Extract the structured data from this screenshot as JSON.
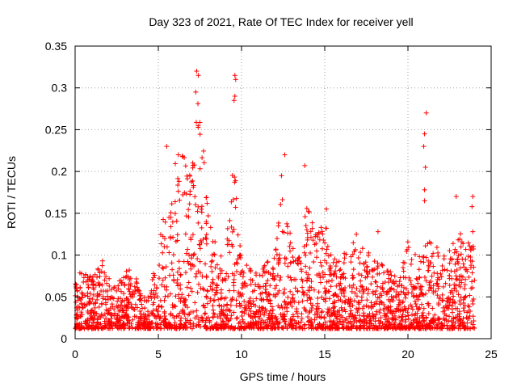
{
  "chart_data": {
    "type": "scatter",
    "title": "Day 323 of 2021, Rate Of TEC Index for receiver yell",
    "xlabel": "GPS time / hours",
    "ylabel": "ROTI / TECUs",
    "xlim": [
      0,
      25
    ],
    "ylim": [
      0,
      0.35
    ],
    "xticks": [
      0,
      5,
      10,
      15,
      20,
      25
    ],
    "xtick_labels": [
      "0",
      "5",
      "10",
      "15",
      "20",
      "25"
    ],
    "yticks": [
      0,
      0.05,
      0.1,
      0.15,
      0.2,
      0.25,
      0.3,
      0.35
    ],
    "ytick_labels": [
      "0",
      "0.05",
      "0.1",
      "0.15",
      "0.2",
      "0.25",
      "0.3",
      "0.35"
    ],
    "grid": true,
    "marker": "+",
    "marker_color": "#ff0000",
    "series": [
      {
        "name": "ROTI",
        "x_range": [
          0,
          24
        ],
        "envelope": [
          {
            "x": 0.0,
            "y": 0.07
          },
          {
            "x": 0.3,
            "y": 0.085
          },
          {
            "x": 1.0,
            "y": 0.075
          },
          {
            "x": 1.7,
            "y": 0.095
          },
          {
            "x": 2.0,
            "y": 0.075
          },
          {
            "x": 2.5,
            "y": 0.06
          },
          {
            "x": 2.9,
            "y": 0.09
          },
          {
            "x": 3.5,
            "y": 0.085
          },
          {
            "x": 4.0,
            "y": 0.05
          },
          {
            "x": 4.5,
            "y": 0.05
          },
          {
            "x": 5.0,
            "y": 0.12
          },
          {
            "x": 5.5,
            "y": 0.17
          },
          {
            "x": 6.0,
            "y": 0.21
          },
          {
            "x": 6.5,
            "y": 0.23
          },
          {
            "x": 7.0,
            "y": 0.2
          },
          {
            "x": 7.3,
            "y": 0.3
          },
          {
            "x": 7.6,
            "y": 0.27
          },
          {
            "x": 8.0,
            "y": 0.16
          },
          {
            "x": 8.5,
            "y": 0.11
          },
          {
            "x": 9.0,
            "y": 0.09
          },
          {
            "x": 9.4,
            "y": 0.2
          },
          {
            "x": 9.6,
            "y": 0.21
          },
          {
            "x": 10.0,
            "y": 0.09
          },
          {
            "x": 11.0,
            "y": 0.085
          },
          {
            "x": 12.0,
            "y": 0.1
          },
          {
            "x": 12.5,
            "y": 0.19
          },
          {
            "x": 13.0,
            "y": 0.12
          },
          {
            "x": 13.5,
            "y": 0.1
          },
          {
            "x": 13.9,
            "y": 0.17
          },
          {
            "x": 14.5,
            "y": 0.13
          },
          {
            "x": 15.0,
            "y": 0.15
          },
          {
            "x": 15.5,
            "y": 0.1
          },
          {
            "x": 16.5,
            "y": 0.12
          },
          {
            "x": 17.5,
            "y": 0.11
          },
          {
            "x": 18.5,
            "y": 0.09
          },
          {
            "x": 19.5,
            "y": 0.07
          },
          {
            "x": 20.0,
            "y": 0.12
          },
          {
            "x": 20.5,
            "y": 0.1
          },
          {
            "x": 21.0,
            "y": 0.11
          },
          {
            "x": 21.5,
            "y": 0.12
          },
          {
            "x": 22.0,
            "y": 0.1
          },
          {
            "x": 22.5,
            "y": 0.11
          },
          {
            "x": 23.0,
            "y": 0.13
          },
          {
            "x": 23.5,
            "y": 0.12
          },
          {
            "x": 24.0,
            "y": 0.14
          }
        ],
        "notable_points": [
          {
            "x": 5.5,
            "y": 0.23
          },
          {
            "x": 6.2,
            "y": 0.22
          },
          {
            "x": 7.3,
            "y": 0.32
          },
          {
            "x": 7.4,
            "y": 0.315
          },
          {
            "x": 7.25,
            "y": 0.295
          },
          {
            "x": 9.6,
            "y": 0.315
          },
          {
            "x": 9.65,
            "y": 0.31
          },
          {
            "x": 9.6,
            "y": 0.29
          },
          {
            "x": 9.55,
            "y": 0.285
          },
          {
            "x": 12.6,
            "y": 0.22
          },
          {
            "x": 12.4,
            "y": 0.195
          },
          {
            "x": 13.8,
            "y": 0.207
          },
          {
            "x": 21.1,
            "y": 0.27
          },
          {
            "x": 21.0,
            "y": 0.245
          },
          {
            "x": 20.95,
            "y": 0.23
          },
          {
            "x": 21.05,
            "y": 0.205
          },
          {
            "x": 21.0,
            "y": 0.178
          },
          {
            "x": 21.0,
            "y": 0.165
          },
          {
            "x": 22.9,
            "y": 0.17
          },
          {
            "x": 23.9,
            "y": 0.17
          },
          {
            "x": 23.85,
            "y": 0.158
          },
          {
            "x": 18.2,
            "y": 0.128
          },
          {
            "x": 16.9,
            "y": 0.125
          },
          {
            "x": 15.1,
            "y": 0.155
          }
        ]
      }
    ]
  }
}
